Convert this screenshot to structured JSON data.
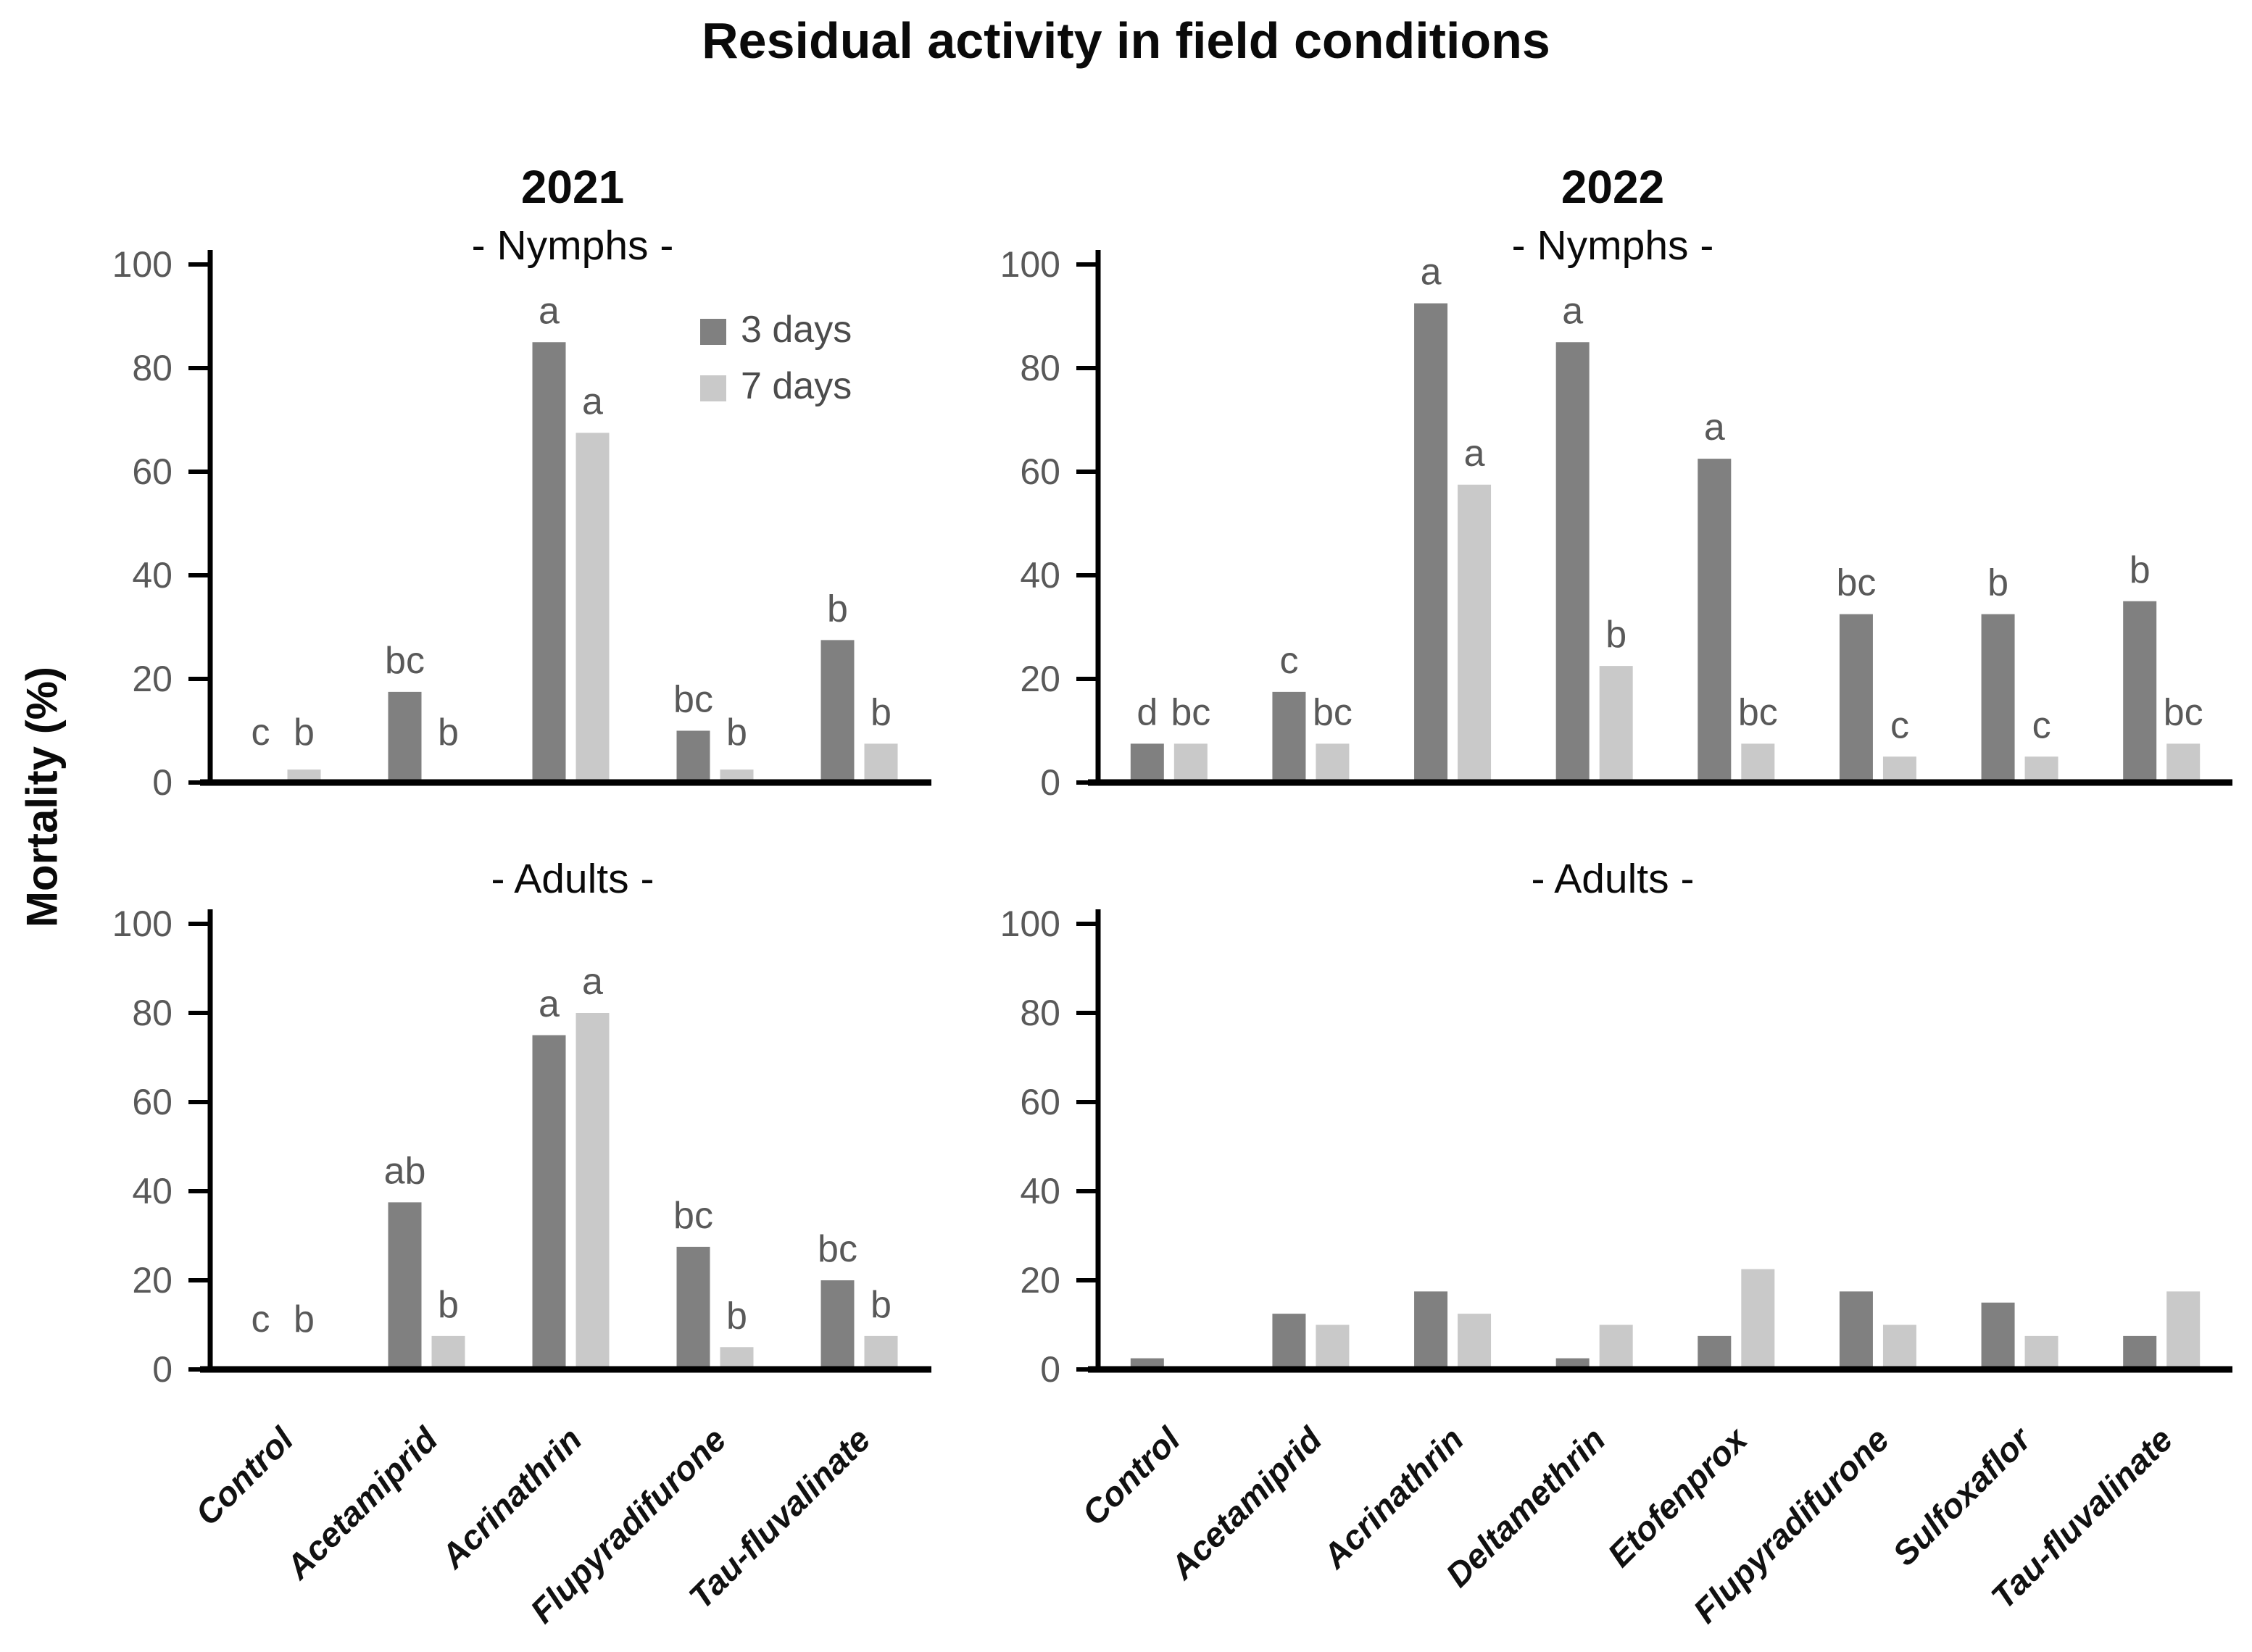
{
  "figure": {
    "title": "Residual activity in field conditions",
    "y_axis_title": "Mortality  (%)",
    "colors": {
      "bar_3_days": "#808080",
      "bar_7_days": "#c9c9c9",
      "axis": "#000000",
      "tick_text": "#595959",
      "letter_text": "#595959",
      "x_label_text": "#111111",
      "title_text": "#0a0a0a",
      "legend_text": "#4c4c4c"
    }
  },
  "legend": {
    "items": [
      {
        "label": "3 days",
        "color": "#808080"
      },
      {
        "label": "7 days",
        "color": "#c9c9c9"
      }
    ]
  },
  "chart_data": [
    {
      "type": "bar",
      "title": "2021",
      "subtitle": "- Nymphs -",
      "ylim": [
        0,
        100
      ],
      "yticks": [
        0,
        20,
        40,
        60,
        80,
        100
      ],
      "categories": [
        "Control",
        "Acetamiprid",
        "Acrinathrin",
        "Flupyradifurone",
        "Tau-fluvalinate"
      ],
      "series": [
        {
          "name": "3 days",
          "color": "#808080",
          "values": [
            0,
            17.5,
            85,
            10,
            27.5
          ],
          "letters": [
            "c",
            "bc",
            "a",
            "bc",
            "b"
          ]
        },
        {
          "name": "7 days",
          "color": "#c9c9c9",
          "values": [
            2.5,
            0,
            67.5,
            2.5,
            7.5
          ],
          "letters": [
            "b",
            "b",
            "a",
            "b",
            "b"
          ]
        }
      ],
      "show_x_labels": false,
      "show_legend": true
    },
    {
      "type": "bar",
      "title": "2022",
      "subtitle": "- Nymphs -",
      "ylim": [
        0,
        100
      ],
      "yticks": [
        0,
        20,
        40,
        60,
        80,
        100
      ],
      "categories": [
        "Control",
        "Acetamiprid",
        "Acrinathrin",
        "Deltamethrin",
        "Etofenprox",
        "Flupyradifurone",
        "Sulfoxaflor",
        "Tau-fluvalinate"
      ],
      "series": [
        {
          "name": "3 days",
          "color": "#808080",
          "values": [
            7.5,
            17.5,
            92.5,
            85,
            62.5,
            32.5,
            32.5,
            35
          ],
          "letters": [
            "d",
            "c",
            "a",
            "a",
            "a",
            "bc",
            "b",
            "b"
          ]
        },
        {
          "name": "7 days",
          "color": "#c9c9c9",
          "values": [
            7.5,
            7.5,
            57.5,
            22.5,
            7.5,
            5,
            5,
            7.5
          ],
          "letters": [
            "bc",
            "bc",
            "a",
            "b",
            "bc",
            "c",
            "c",
            "bc"
          ]
        }
      ],
      "show_x_labels": false,
      "show_legend": false
    },
    {
      "type": "bar",
      "title": "",
      "subtitle": "- Adults -",
      "ylim": [
        0,
        100
      ],
      "yticks": [
        0,
        20,
        40,
        60,
        80,
        100
      ],
      "categories": [
        "Control",
        "Acetamiprid",
        "Acrinathrin",
        "Flupyradifurone",
        "Tau-fluvalinate"
      ],
      "series": [
        {
          "name": "3 days",
          "color": "#808080",
          "values": [
            0,
            37.5,
            75,
            27.5,
            20
          ],
          "letters": [
            "c",
            "ab",
            "a",
            "bc",
            "bc"
          ]
        },
        {
          "name": "7 days",
          "color": "#c9c9c9",
          "values": [
            0,
            7.5,
            80,
            5,
            7.5
          ],
          "letters": [
            "b",
            "b",
            "a",
            "b",
            "b"
          ]
        }
      ],
      "show_x_labels": true,
      "show_legend": false
    },
    {
      "type": "bar",
      "title": "",
      "subtitle": "- Adults -",
      "ylim": [
        0,
        100
      ],
      "yticks": [
        0,
        20,
        40,
        60,
        80,
        100
      ],
      "categories": [
        "Control",
        "Acetamiprid",
        "Acrinathrin",
        "Deltamethrin",
        "Etofenprox",
        "Flupyradifurone",
        "Sulfoxaflor",
        "Tau-fluvalinate"
      ],
      "series": [
        {
          "name": "3 days",
          "color": "#808080",
          "values": [
            2.5,
            12.5,
            17.5,
            2.5,
            7.5,
            17.5,
            15,
            7.5
          ],
          "letters": [
            "",
            "",
            "",
            "",
            "",
            "",
            "",
            ""
          ]
        },
        {
          "name": "7 days",
          "color": "#c9c9c9",
          "values": [
            0,
            10,
            12.5,
            10,
            22.5,
            10,
            7.5,
            17.5
          ],
          "letters": [
            "",
            "",
            "",
            "",
            "",
            "",
            "",
            ""
          ]
        }
      ],
      "show_x_labels": true,
      "show_legend": false
    }
  ]
}
